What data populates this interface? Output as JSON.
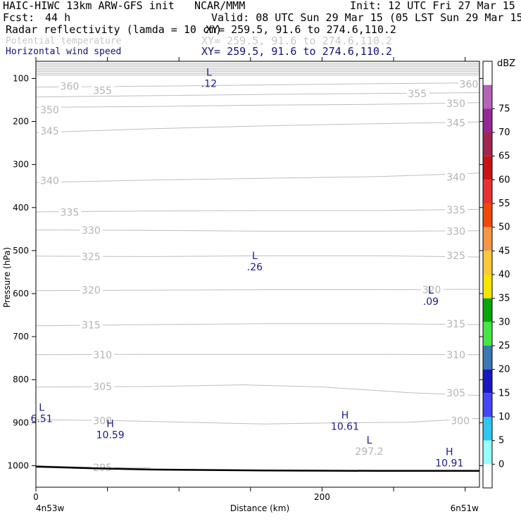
{
  "header": {
    "model_title": "HAIC-HIWC 13km ARW-GFS init",
    "org": "NCAR/MMM",
    "init": "Init: 12 UTC Fri 27 Mar 15",
    "fcst_label": "Fcst:",
    "fcst_value": "44 h",
    "valid": "Valid: 08 UTC Sun 29 Mar 15 (05 LST Sun 29 Mar 15)",
    "fields": [
      {
        "name": "Radar reflectivity (lamda = 10 cm)",
        "xy": "XY= 259.5, 91.6 to 274.6,110.2",
        "color": "#000000"
      },
      {
        "name": "Potential temperature",
        "xy": "XY= 259.5, 91.6 to 274.6,110.2",
        "color": "#c8c8c8"
      },
      {
        "name": "Horizontal wind speed",
        "xy": "XY= 259.5, 91.6 to 274.6,110.2",
        "color": "#10107a"
      }
    ]
  },
  "chart_data": {
    "type": "cross-section",
    "ylabel": "Pressure (hPa)",
    "xlabel": "Distance (km)",
    "x_start_label": "4n53w",
    "x_end_label": "6n51w",
    "xlim": [
      0,
      310
    ],
    "ylim": [
      1050,
      60
    ],
    "x_ticks": [
      0,
      200
    ],
    "y_ticks": [
      100,
      200,
      300,
      400,
      500,
      600,
      700,
      800,
      900,
      1000
    ],
    "colors": {
      "theta": "#bebebe",
      "wind": "#1a1a8c",
      "terrain": "#000000"
    },
    "theta_contours": [
      {
        "value": 360,
        "points": [
          [
            0,
            120
          ],
          [
            80,
            118
          ],
          [
            160,
            115
          ],
          [
            240,
            112
          ],
          [
            310,
            110
          ]
        ],
        "label_pos": [
          [
            17,
            118
          ],
          [
            296,
            113
          ]
        ]
      },
      {
        "value": 355,
        "points": [
          [
            0,
            143
          ],
          [
            80,
            140
          ],
          [
            160,
            137
          ],
          [
            240,
            135
          ],
          [
            310,
            133
          ]
        ],
        "label_pos": [
          [
            40,
            128
          ],
          [
            260,
            135
          ]
        ]
      },
      {
        "value": 350,
        "points": [
          [
            0,
            167
          ],
          [
            80,
            165
          ],
          [
            160,
            162
          ],
          [
            240,
            160
          ],
          [
            310,
            156
          ]
        ],
        "label_pos": [
          [
            3,
            173
          ],
          [
            287,
            158
          ]
        ]
      },
      {
        "value": 345,
        "points": [
          [
            0,
            226
          ],
          [
            80,
            217
          ],
          [
            160,
            210
          ],
          [
            240,
            205
          ],
          [
            310,
            201
          ]
        ],
        "label_pos": [
          [
            3,
            222
          ],
          [
            287,
            203
          ]
        ]
      },
      {
        "value": 340,
        "points": [
          [
            0,
            342
          ],
          [
            80,
            336
          ],
          [
            160,
            332
          ],
          [
            240,
            328
          ],
          [
            310,
            320
          ]
        ],
        "label_pos": [
          [
            3,
            337
          ],
          [
            287,
            329
          ]
        ]
      },
      {
        "value": 335,
        "points": [
          [
            0,
            410
          ],
          [
            80,
            408
          ],
          [
            160,
            407
          ],
          [
            240,
            407
          ],
          [
            310,
            404
          ]
        ],
        "label_pos": [
          [
            17,
            411
          ],
          [
            287,
            405
          ]
        ]
      },
      {
        "value": 330,
        "points": [
          [
            0,
            452
          ],
          [
            80,
            453
          ],
          [
            160,
            455
          ],
          [
            240,
            455
          ],
          [
            310,
            454
          ]
        ],
        "label_pos": [
          [
            32,
            453
          ],
          [
            287,
            455
          ]
        ]
      },
      {
        "value": 325,
        "points": [
          [
            0,
            513
          ],
          [
            80,
            514
          ],
          [
            160,
            512
          ],
          [
            240,
            512
          ],
          [
            310,
            515
          ]
        ],
        "label_pos": [
          [
            32,
            514
          ],
          [
            287,
            512
          ]
        ]
      },
      {
        "value": 320,
        "points": [
          [
            0,
            593
          ],
          [
            80,
            592
          ],
          [
            160,
            591
          ],
          [
            240,
            591
          ],
          [
            310,
            590
          ]
        ],
        "label_pos": [
          [
            32,
            592
          ],
          [
            270,
            591
          ]
        ]
      },
      {
        "value": 315,
        "points": [
          [
            0,
            675
          ],
          [
            80,
            672
          ],
          [
            160,
            670
          ],
          [
            240,
            670
          ],
          [
            310,
            672
          ]
        ],
        "label_pos": [
          [
            32,
            673
          ],
          [
            287,
            670
          ]
        ]
      },
      {
        "value": 310,
        "points": [
          [
            0,
            742
          ],
          [
            80,
            741
          ],
          [
            160,
            741
          ],
          [
            240,
            741
          ],
          [
            310,
            742
          ]
        ],
        "label_pos": [
          [
            40,
            742
          ],
          [
            287,
            742
          ]
        ]
      },
      {
        "value": 305,
        "points": [
          [
            0,
            817
          ],
          [
            80,
            816
          ],
          [
            145,
            812
          ],
          [
            200,
            817
          ],
          [
            260,
            830
          ],
          [
            310,
            837
          ]
        ],
        "label_pos": [
          [
            40,
            816
          ],
          [
            287,
            831
          ]
        ]
      },
      {
        "value": 300,
        "points": [
          [
            0,
            893
          ],
          [
            50,
            895
          ],
          [
            160,
            903
          ],
          [
            220,
            900
          ],
          [
            260,
            899
          ],
          [
            310,
            890
          ]
        ],
        "label_pos": [
          [
            40,
            895
          ],
          [
            290,
            895
          ]
        ]
      },
      {
        "value": 295,
        "points": [
          [
            0,
            1000
          ],
          [
            30,
            1003
          ],
          [
            80,
            1005
          ]
        ],
        "label_pos": [
          [
            40,
            1004
          ]
        ]
      }
    ],
    "extrema": [
      {
        "type": "L",
        "value": ".12",
        "field": "wind",
        "x": 121,
        "p": 103
      },
      {
        "type": "L",
        "value": ".26",
        "field": "wind",
        "x": 153,
        "p": 530
      },
      {
        "type": "L",
        "value": ".09",
        "field": "wind",
        "x": 276,
        "p": 610
      },
      {
        "type": "L",
        "value": "6.51",
        "field": "wind",
        "x": 4,
        "p": 882
      },
      {
        "type": "H",
        "value": "10.59",
        "field": "wind",
        "x": 52,
        "p": 920
      },
      {
        "type": "H",
        "value": "10.61",
        "field": "wind",
        "x": 216,
        "p": 900
      },
      {
        "type": "L",
        "value": "297.2",
        "field": "theta",
        "x": 233,
        "p": 958
      },
      {
        "type": "H",
        "value": "10.91",
        "field": "wind",
        "x": 289,
        "p": 985
      }
    ],
    "terrain": [
      [
        0,
        1002
      ],
      [
        40,
        1006
      ],
      [
        80,
        1009
      ],
      [
        160,
        1011
      ],
      [
        240,
        1012
      ],
      [
        310,
        1012
      ]
    ],
    "colorbar": {
      "unit": "dBZ",
      "levels": [
        "0",
        "5",
        "10",
        "15",
        "20",
        "25",
        "30",
        "35",
        "40",
        "45",
        "50",
        "55",
        "60",
        "65",
        "70",
        "75"
      ],
      "colors": [
        "#ffffff",
        "#96ffff",
        "#30c8f0",
        "#4646f5",
        "#1818c0",
        "#3c78b4",
        "#46e646",
        "#0aa50a",
        "#f5e600",
        "#fac83c",
        "#f59646",
        "#f04a0a",
        "#e63232",
        "#c81414",
        "#a02850",
        "#962896",
        "#b464b4",
        "#ffffff"
      ]
    }
  }
}
